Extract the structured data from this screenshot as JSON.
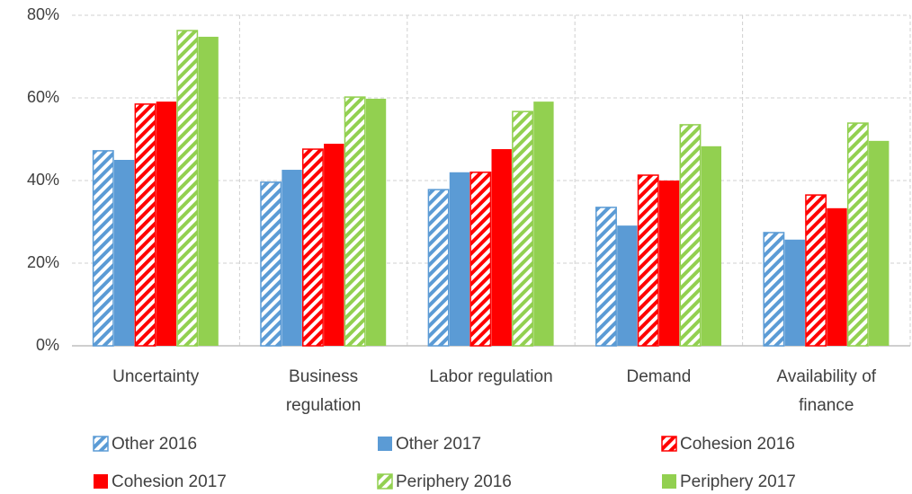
{
  "chart_data": {
    "type": "bar",
    "categories": [
      "Uncertainty",
      "Business regulation",
      "Labor regulation",
      "Demand",
      "Availability of finance"
    ],
    "series": [
      {
        "name": "Other 2016",
        "color": "#5b9bd5",
        "hatch": true,
        "values": [
          47.2,
          39.6,
          37.8,
          33.5,
          27.4
        ]
      },
      {
        "name": "Other 2017",
        "color": "#5b9bd5",
        "hatch": false,
        "values": [
          45.0,
          42.6,
          42.0,
          29.1,
          25.7
        ]
      },
      {
        "name": "Cohesion 2016",
        "color": "#ff0000",
        "hatch": true,
        "values": [
          58.5,
          47.6,
          42.0,
          41.3,
          36.5
        ]
      },
      {
        "name": "Cohesion 2017",
        "color": "#ff0000",
        "hatch": false,
        "values": [
          59.1,
          48.9,
          47.6,
          40.0,
          33.3
        ]
      },
      {
        "name": "Periphery 2016",
        "color": "#92d050",
        "hatch": true,
        "values": [
          76.3,
          60.2,
          56.7,
          53.5,
          53.9
        ]
      },
      {
        "name": "Periphery 2017",
        "color": "#92d050",
        "hatch": false,
        "values": [
          74.8,
          59.8,
          59.1,
          48.3,
          49.6
        ]
      }
    ],
    "ylim": [
      0,
      80
    ],
    "yticks": [
      {
        "value": 0,
        "label": "0%"
      },
      {
        "value": 20,
        "label": "20%"
      },
      {
        "value": 40,
        "label": "40%"
      },
      {
        "value": 60,
        "label": "60%"
      },
      {
        "value": 80,
        "label": "80%"
      }
    ],
    "grid": true
  }
}
